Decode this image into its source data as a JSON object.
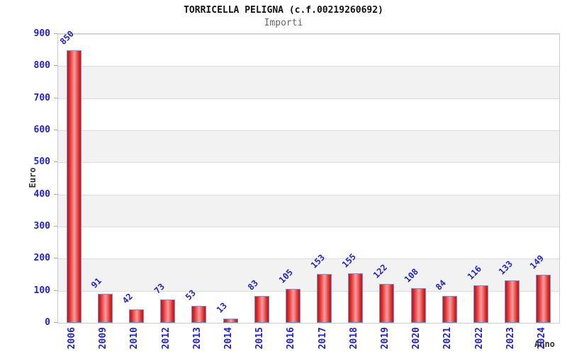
{
  "chart_data": {
    "type": "bar",
    "title": "TORRICELLA PELIGNA (c.f.00219260692)",
    "subtitle": "Importi",
    "xlabel": "Anno",
    "ylabel": "Euro",
    "categories": [
      "2006",
      "2009",
      "2010",
      "2012",
      "2013",
      "2014",
      "2015",
      "2016",
      "2017",
      "2018",
      "2019",
      "2020",
      "2021",
      "2022",
      "2023",
      "2024"
    ],
    "values": [
      850,
      91,
      42,
      73,
      53,
      13,
      83,
      105,
      153,
      155,
      122,
      108,
      84,
      116,
      133,
      149
    ],
    "ylim": [
      0,
      900
    ],
    "yticks": [
      0,
      100,
      200,
      300,
      400,
      500,
      600,
      700,
      800,
      900
    ],
    "grid": true,
    "legend": "none",
    "colors": {
      "bar_fill_dark": "#c81414",
      "bar_fill_light": "#f5a0a0",
      "bar_border": "#55a0e8",
      "axis_text": "#2222cc",
      "value_label": "#2222cc",
      "title": "#111111",
      "subtitle": "#666666",
      "axis_title": "#333333",
      "stripe": "#f2f2f2",
      "gridline": "#dcdcdc",
      "plot_border": "#cccccc"
    }
  }
}
